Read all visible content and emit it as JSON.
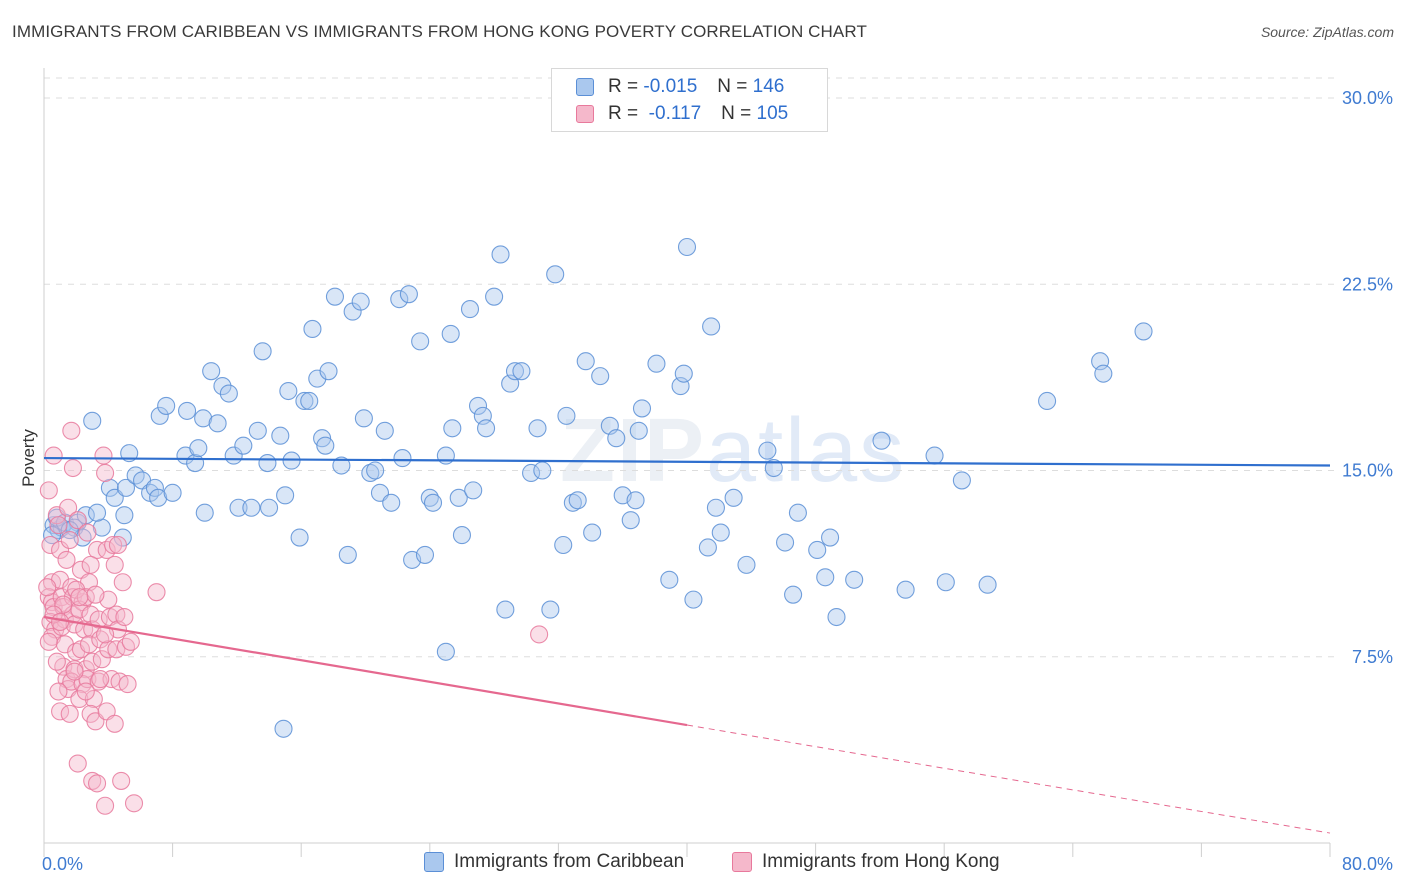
{
  "title": "IMMIGRANTS FROM CARIBBEAN VS IMMIGRANTS FROM HONG KONG POVERTY CORRELATION CHART",
  "source": "Source: ZipAtlas.com",
  "watermark": {
    "bold": "ZIP",
    "light": "atlas"
  },
  "colors": {
    "blue_fill": "#aac8ee",
    "blue_stroke": "#5b8fd6",
    "blue_line": "#2f6fce",
    "pink_fill": "#f5b8cb",
    "pink_stroke": "#e8799c",
    "pink_line": "#e5688f",
    "grid": "#dddddd",
    "tick_text": "#3f7bd1"
  },
  "legend": {
    "rows": [
      {
        "r_label": "R =",
        "r_value": "-0.015",
        "n_label": "N =",
        "n_value": "146"
      },
      {
        "r_label": "R =",
        "r_value": "-0.117",
        "n_label": "N =",
        "n_value": "105"
      }
    ]
  },
  "chart_data": {
    "type": "scatter",
    "title": "IMMIGRANTS FROM CARIBBEAN VS IMMIGRANTS FROM HONG KONG POVERTY CORRELATION CHART",
    "xlabel": "",
    "ylabel": "Poverty",
    "xlim": [
      0,
      80
    ],
    "ylim": [
      0,
      30
    ],
    "x_tick_labels": [
      {
        "value": 0,
        "label": "0.0%"
      },
      {
        "value": 80,
        "label": "80.0%"
      }
    ],
    "y_ticks": [
      {
        "value": 7.5,
        "label": "7.5%"
      },
      {
        "value": 15,
        "label": "15.0%"
      },
      {
        "value": 22.5,
        "label": "22.5%"
      },
      {
        "value": 30,
        "label": "30.0%"
      }
    ],
    "grid": true,
    "legend_position": "top-center",
    "series": [
      {
        "name": "Immigrants from Caribbean",
        "color": "blue",
        "trend": {
          "x": [
            0,
            80
          ],
          "y": [
            15.5,
            15.2
          ],
          "dashed_from": null
        },
        "points": [
          [
            0.6,
            12.8
          ],
          [
            0.9,
            12.6
          ],
          [
            1.1,
            12.7
          ],
          [
            0.8,
            13.1
          ],
          [
            1.3,
            12.9
          ],
          [
            2.1,
            12.9
          ],
          [
            1.9,
            12.7
          ],
          [
            2.6,
            13.2
          ],
          [
            3.6,
            12.7
          ],
          [
            4.9,
            12.3
          ],
          [
            3.0,
            17.0
          ],
          [
            4.1,
            14.3
          ],
          [
            4.4,
            13.9
          ],
          [
            5.3,
            15.7
          ],
          [
            5.1,
            14.3
          ],
          [
            5.0,
            13.2
          ],
          [
            5.7,
            14.8
          ],
          [
            6.1,
            14.6
          ],
          [
            6.6,
            14.1
          ],
          [
            6.9,
            14.3
          ],
          [
            7.1,
            13.9
          ],
          [
            7.2,
            17.2
          ],
          [
            7.6,
            17.6
          ],
          [
            8.0,
            14.1
          ],
          [
            8.8,
            15.6
          ],
          [
            8.9,
            17.4
          ],
          [
            9.4,
            15.3
          ],
          [
            9.6,
            15.9
          ],
          [
            9.9,
            17.1
          ],
          [
            10.0,
            13.3
          ],
          [
            10.4,
            19.0
          ],
          [
            10.8,
            16.9
          ],
          [
            11.1,
            18.4
          ],
          [
            11.5,
            18.1
          ],
          [
            11.8,
            15.6
          ],
          [
            12.1,
            13.5
          ],
          [
            12.4,
            16.0
          ],
          [
            12.9,
            13.5
          ],
          [
            13.3,
            16.6
          ],
          [
            13.6,
            19.8
          ],
          [
            13.9,
            15.3
          ],
          [
            14.0,
            13.5
          ],
          [
            14.7,
            16.4
          ],
          [
            15.0,
            14.0
          ],
          [
            15.2,
            18.2
          ],
          [
            15.4,
            15.4
          ],
          [
            15.9,
            12.3
          ],
          [
            16.2,
            17.8
          ],
          [
            16.5,
            17.8
          ],
          [
            16.7,
            20.7
          ],
          [
            17.0,
            18.7
          ],
          [
            17.3,
            16.3
          ],
          [
            17.5,
            16.0
          ],
          [
            17.7,
            19.0
          ],
          [
            18.1,
            22.0
          ],
          [
            18.5,
            15.2
          ],
          [
            18.9,
            11.6
          ],
          [
            19.2,
            21.4
          ],
          [
            19.7,
            21.8
          ],
          [
            19.9,
            17.1
          ],
          [
            20.3,
            14.9
          ],
          [
            20.6,
            15.0
          ],
          [
            20.9,
            14.1
          ],
          [
            21.2,
            16.6
          ],
          [
            21.6,
            13.7
          ],
          [
            22.1,
            21.9
          ],
          [
            22.3,
            15.5
          ],
          [
            22.7,
            22.1
          ],
          [
            22.9,
            11.4
          ],
          [
            23.4,
            20.2
          ],
          [
            23.7,
            11.6
          ],
          [
            24.0,
            13.9
          ],
          [
            24.2,
            13.7
          ],
          [
            25.0,
            15.6
          ],
          [
            25.3,
            20.5
          ],
          [
            25.4,
            16.7
          ],
          [
            25.8,
            13.9
          ],
          [
            26.0,
            12.4
          ],
          [
            26.5,
            21.5
          ],
          [
            26.7,
            14.2
          ],
          [
            27.0,
            17.6
          ],
          [
            27.3,
            17.2
          ],
          [
            27.5,
            16.7
          ],
          [
            28.0,
            22.0
          ],
          [
            28.4,
            23.7
          ],
          [
            28.7,
            9.4
          ],
          [
            29.0,
            18.5
          ],
          [
            29.3,
            19.0
          ],
          [
            29.7,
            19.0
          ],
          [
            30.3,
            14.9
          ],
          [
            30.7,
            16.7
          ],
          [
            31.0,
            15.0
          ],
          [
            31.5,
            9.4
          ],
          [
            31.8,
            22.9
          ],
          [
            32.3,
            12.0
          ],
          [
            32.5,
            17.2
          ],
          [
            32.9,
            13.7
          ],
          [
            33.2,
            13.8
          ],
          [
            33.7,
            19.4
          ],
          [
            34.1,
            12.5
          ],
          [
            34.6,
            18.8
          ],
          [
            35.2,
            16.8
          ],
          [
            35.6,
            16.3
          ],
          [
            36.0,
            14.0
          ],
          [
            36.5,
            13.0
          ],
          [
            36.8,
            13.8
          ],
          [
            37.0,
            16.6
          ],
          [
            37.2,
            17.5
          ],
          [
            38.1,
            19.3
          ],
          [
            38.9,
            10.6
          ],
          [
            39.6,
            18.4
          ],
          [
            39.8,
            18.9
          ],
          [
            40.0,
            24.0
          ],
          [
            40.4,
            9.8
          ],
          [
            41.3,
            11.9
          ],
          [
            41.5,
            20.8
          ],
          [
            41.8,
            13.5
          ],
          [
            42.1,
            12.5
          ],
          [
            42.9,
            13.9
          ],
          [
            43.7,
            11.2
          ],
          [
            45.0,
            15.8
          ],
          [
            45.4,
            15.1
          ],
          [
            46.1,
            12.1
          ],
          [
            46.6,
            10.0
          ],
          [
            46.9,
            13.3
          ],
          [
            48.1,
            11.8
          ],
          [
            48.6,
            10.7
          ],
          [
            48.9,
            12.3
          ],
          [
            49.3,
            9.1
          ],
          [
            50.4,
            10.6
          ],
          [
            52.1,
            16.2
          ],
          [
            53.6,
            10.2
          ],
          [
            55.4,
            15.6
          ],
          [
            56.1,
            10.5
          ],
          [
            57.1,
            14.6
          ],
          [
            58.7,
            10.4
          ],
          [
            62.4,
            17.8
          ],
          [
            65.7,
            19.4
          ],
          [
            65.9,
            18.9
          ],
          [
            68.4,
            20.6
          ],
          [
            14.9,
            4.6
          ],
          [
            25.0,
            7.7
          ],
          [
            0.5,
            12.4
          ],
          [
            2.4,
            12.3
          ],
          [
            3.3,
            13.3
          ],
          [
            1.6,
            12.6
          ]
        ]
      },
      {
        "name": "Immigrants from Hong Kong",
        "color": "pink",
        "trend": {
          "x": [
            0,
            80
          ],
          "y": [
            9.1,
            0.4
          ],
          "dashed_from": 40
        },
        "points": [
          [
            0.3,
            14.2
          ],
          [
            0.4,
            12.0
          ],
          [
            0.5,
            10.5
          ],
          [
            0.3,
            9.9
          ],
          [
            0.5,
            9.7
          ],
          [
            0.6,
            9.5
          ],
          [
            0.4,
            8.9
          ],
          [
            0.7,
            8.6
          ],
          [
            0.5,
            8.3
          ],
          [
            0.6,
            15.6
          ],
          [
            0.8,
            13.2
          ],
          [
            0.9,
            12.8
          ],
          [
            1.0,
            11.8
          ],
          [
            1.0,
            10.6
          ],
          [
            1.1,
            9.9
          ],
          [
            1.2,
            9.5
          ],
          [
            1.3,
            9.0
          ],
          [
            1.1,
            8.7
          ],
          [
            1.3,
            8.0
          ],
          [
            1.2,
            7.1
          ],
          [
            1.4,
            6.6
          ],
          [
            1.0,
            5.3
          ],
          [
            1.5,
            6.2
          ],
          [
            1.5,
            13.5
          ],
          [
            1.6,
            12.2
          ],
          [
            1.7,
            10.3
          ],
          [
            1.8,
            9.9
          ],
          [
            1.8,
            9.2
          ],
          [
            1.9,
            8.8
          ],
          [
            2.0,
            7.7
          ],
          [
            1.9,
            7.0
          ],
          [
            1.7,
            6.5
          ],
          [
            1.6,
            5.2
          ],
          [
            1.7,
            16.6
          ],
          [
            1.8,
            15.1
          ],
          [
            2.1,
            13.0
          ],
          [
            2.3,
            11.0
          ],
          [
            2.4,
            9.7
          ],
          [
            2.2,
            9.4
          ],
          [
            2.5,
            8.6
          ],
          [
            2.3,
            7.8
          ],
          [
            2.6,
            7.0
          ],
          [
            2.4,
            6.4
          ],
          [
            2.2,
            5.8
          ],
          [
            2.1,
            3.2
          ],
          [
            2.7,
            12.5
          ],
          [
            2.8,
            10.5
          ],
          [
            2.9,
            9.2
          ],
          [
            3.0,
            8.6
          ],
          [
            2.8,
            8.0
          ],
          [
            3.0,
            7.3
          ],
          [
            2.7,
            6.6
          ],
          [
            3.1,
            5.8
          ],
          [
            2.9,
            5.2
          ],
          [
            3.0,
            2.5
          ],
          [
            3.3,
            11.8
          ],
          [
            3.4,
            9.0
          ],
          [
            3.5,
            8.2
          ],
          [
            3.6,
            7.4
          ],
          [
            3.4,
            6.5
          ],
          [
            3.2,
            4.9
          ],
          [
            3.3,
            2.4
          ],
          [
            3.7,
            15.6
          ],
          [
            3.8,
            14.9
          ],
          [
            3.9,
            11.8
          ],
          [
            4.0,
            9.8
          ],
          [
            4.1,
            9.1
          ],
          [
            4.0,
            7.8
          ],
          [
            4.2,
            6.6
          ],
          [
            3.9,
            5.3
          ],
          [
            3.8,
            1.5
          ],
          [
            4.3,
            12.0
          ],
          [
            4.4,
            11.2
          ],
          [
            4.5,
            9.2
          ],
          [
            4.6,
            8.6
          ],
          [
            4.5,
            7.8
          ],
          [
            4.7,
            6.5
          ],
          [
            4.4,
            4.8
          ],
          [
            4.8,
            2.5
          ],
          [
            4.9,
            10.5
          ],
          [
            5.0,
            9.1
          ],
          [
            5.1,
            7.9
          ],
          [
            5.2,
            6.4
          ],
          [
            5.4,
            8.1
          ],
          [
            5.6,
            1.6
          ],
          [
            7.0,
            10.1
          ],
          [
            0.2,
            10.3
          ],
          [
            0.3,
            8.1
          ],
          [
            0.8,
            7.3
          ],
          [
            1.4,
            11.4
          ],
          [
            2.0,
            10.2
          ],
          [
            2.6,
            9.9
          ],
          [
            3.2,
            10.0
          ],
          [
            3.8,
            8.4
          ],
          [
            4.6,
            12.0
          ],
          [
            0.9,
            6.1
          ],
          [
            1.9,
            6.9
          ],
          [
            2.6,
            6.1
          ],
          [
            3.5,
            6.6
          ],
          [
            1.2,
            9.6
          ],
          [
            2.2,
            9.9
          ],
          [
            0.6,
            9.2
          ],
          [
            1.0,
            8.9
          ],
          [
            30.8,
            8.4
          ],
          [
            2.9,
            11.2
          ]
        ]
      }
    ]
  },
  "bottom_legend": [
    {
      "label": "Immigrants from Caribbean"
    },
    {
      "label": "Immigrants from Hong Kong"
    }
  ]
}
